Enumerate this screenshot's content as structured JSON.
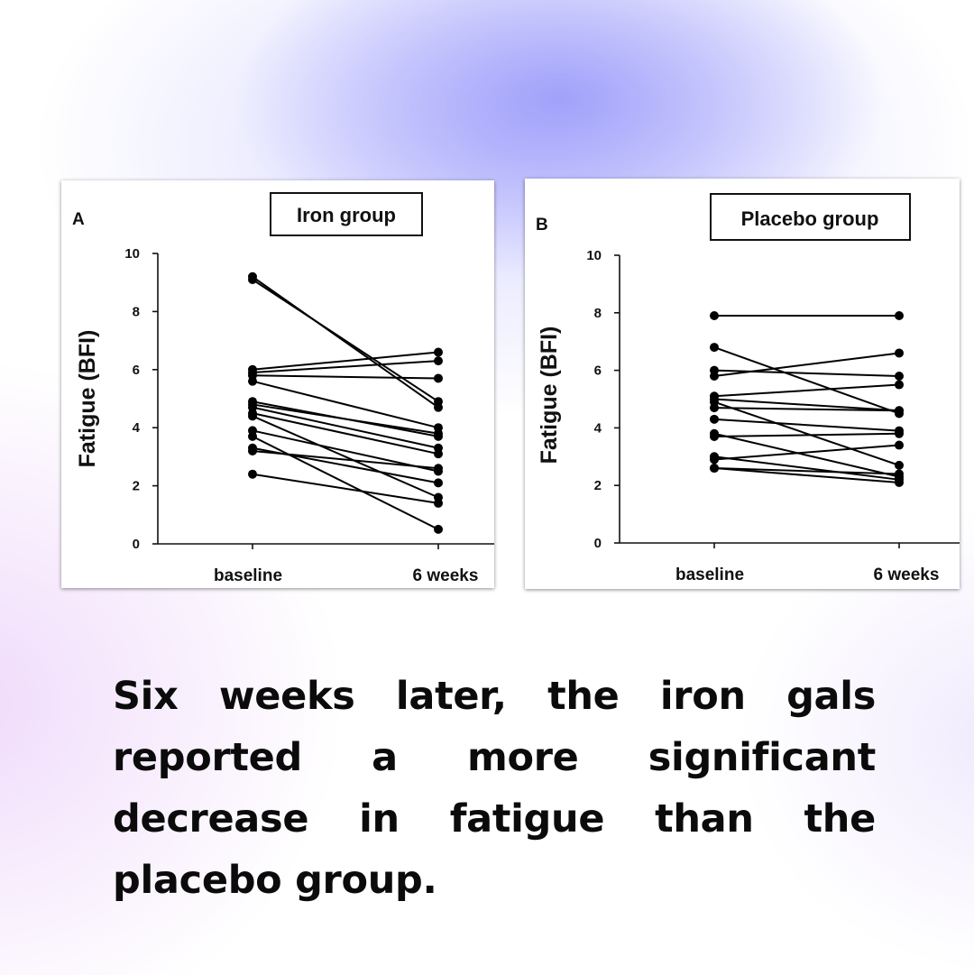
{
  "caption": "Six weeks later, the iron gals reported a more significant decrease in fatigue than the placebo group.",
  "chart_data": [
    {
      "type": "line",
      "panel_label": "A",
      "title": "Iron group",
      "ylabel": "Fatigue (BFI)",
      "xlabel": "",
      "categories": [
        "baseline",
        "6 weeks"
      ],
      "ylim": [
        0,
        10
      ],
      "yticks": [
        0,
        2,
        4,
        6,
        8,
        10
      ],
      "grid": false,
      "legend": "none",
      "series": [
        {
          "values": [
            9.2,
            4.7
          ]
        },
        {
          "values": [
            9.1,
            4.9
          ]
        },
        {
          "values": [
            6.0,
            6.6
          ]
        },
        {
          "values": [
            5.9,
            6.3
          ]
        },
        {
          "values": [
            5.8,
            5.7
          ]
        },
        {
          "values": [
            5.6,
            4.0
          ]
        },
        {
          "values": [
            4.9,
            3.7
          ]
        },
        {
          "values": [
            4.8,
            3.8
          ]
        },
        {
          "values": [
            4.7,
            3.3
          ]
        },
        {
          "values": [
            4.5,
            3.1
          ]
        },
        {
          "values": [
            4.4,
            1.6
          ]
        },
        {
          "values": [
            3.9,
            2.5
          ]
        },
        {
          "values": [
            3.7,
            0.5
          ]
        },
        {
          "values": [
            3.3,
            2.1
          ]
        },
        {
          "values": [
            3.2,
            2.6
          ]
        },
        {
          "values": [
            2.4,
            1.4
          ]
        }
      ]
    },
    {
      "type": "line",
      "panel_label": "B",
      "title": "Placebo group",
      "ylabel": "Fatigue (BFI)",
      "xlabel": "",
      "categories": [
        "baseline",
        "6 weeks"
      ],
      "ylim": [
        0,
        10
      ],
      "yticks": [
        0,
        2,
        4,
        6,
        8,
        10
      ],
      "grid": false,
      "legend": "none",
      "series": [
        {
          "values": [
            7.9,
            7.9
          ]
        },
        {
          "values": [
            6.8,
            4.5
          ]
        },
        {
          "values": [
            6.0,
            5.8
          ]
        },
        {
          "values": [
            5.8,
            6.6
          ]
        },
        {
          "values": [
            5.1,
            5.5
          ]
        },
        {
          "values": [
            5.0,
            4.6
          ]
        },
        {
          "values": [
            4.9,
            2.7
          ]
        },
        {
          "values": [
            4.7,
            4.6
          ]
        },
        {
          "values": [
            4.3,
            3.9
          ]
        },
        {
          "values": [
            3.8,
            2.3
          ]
        },
        {
          "values": [
            3.7,
            3.8
          ]
        },
        {
          "values": [
            3.0,
            2.2
          ]
        },
        {
          "values": [
            2.9,
            3.4
          ]
        },
        {
          "values": [
            2.6,
            2.4
          ]
        },
        {
          "values": [
            2.6,
            2.1
          ]
        }
      ]
    }
  ]
}
